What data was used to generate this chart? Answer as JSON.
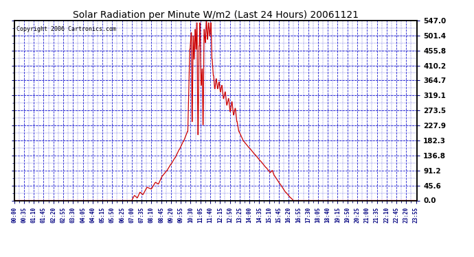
{
  "title": "Solar Radiation per Minute W/m2 (Last 24 Hours) 20061121",
  "copyright": "Copyright 2006 Cartronics.com",
  "background_color": "#ffffff",
  "plot_background": "#ffffff",
  "line_color": "#cc0000",
  "grid_color": "#0000cc",
  "text_color": "#000000",
  "title_color": "#000000",
  "yticks": [
    0.0,
    45.6,
    91.2,
    136.8,
    182.3,
    227.9,
    273.5,
    319.1,
    364.7,
    410.2,
    455.8,
    501.4,
    547.0
  ],
  "ymax": 547.0,
  "ymin": 0.0,
  "num_minutes": 1440,
  "tick_step": 35
}
